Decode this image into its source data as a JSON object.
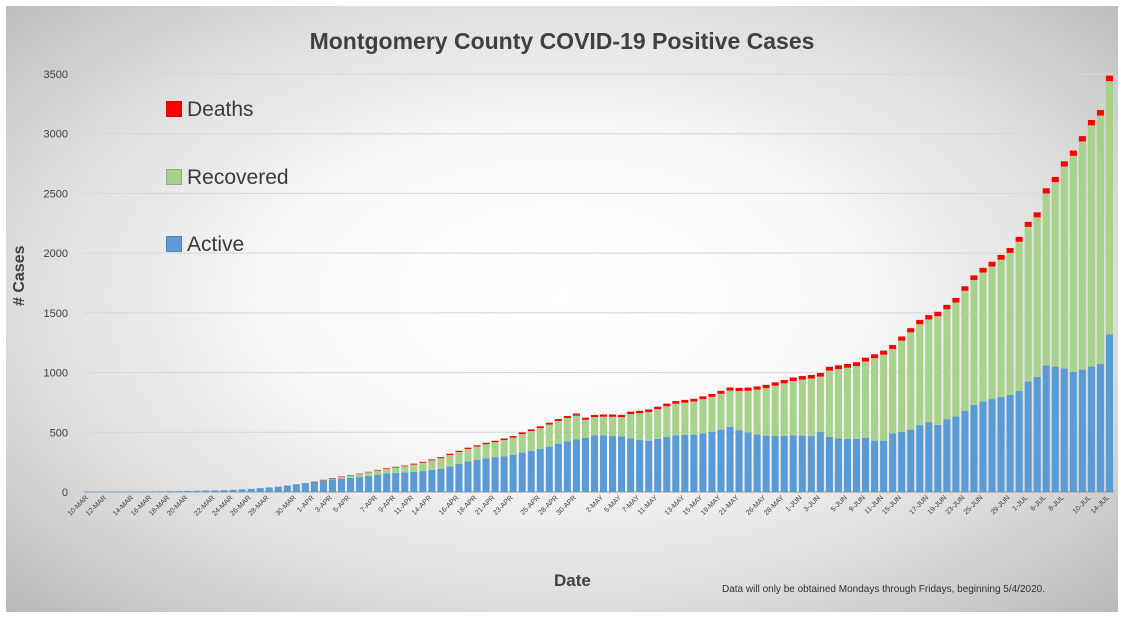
{
  "chart_data": {
    "type": "bar",
    "stacked": true,
    "title": "Montgomery County COVID-19 Positive Cases",
    "xlabel": "Date",
    "ylabel": "# Cases",
    "ylim": [
      0,
      3500
    ],
    "yticks": [
      0,
      500,
      1000,
      1500,
      2000,
      2500,
      3000,
      3500
    ],
    "grid": true,
    "legend_position": "top-left",
    "footnote": "Data will only be obtained Mondays through Fridays, beginning 5/4/2020.",
    "x_tick_labels": [
      "10-MAR",
      "12-MAR",
      "14-MAR",
      "16-MAR",
      "18-MAR",
      "20-MAR",
      "22-MAR",
      "24-MAR",
      "26-MAR",
      "28-MAR",
      "30-MAR",
      "1-APR",
      "3-APR",
      "5-APR",
      "7-APR",
      "9-APR",
      "11-APR",
      "14-APR",
      "16-APR",
      "18-APR",
      "21-APR",
      "23-APR",
      "25-APR",
      "28-APR",
      "30-APR",
      "2-MAY",
      "5-MAY",
      "7-MAY",
      "11-MAY",
      "13-MAY",
      "15-MAY",
      "19-MAY",
      "21-MAY",
      "26-MAY",
      "28-MAY",
      "1-JUN",
      "3-JUN",
      "5-JUN",
      "9-JUN",
      "11-JUN",
      "15-JUN",
      "17-JUN",
      "19-JUN",
      "23-JUN",
      "25-JUN",
      "29-JUN",
      "1-JUL",
      "6-JUL",
      "8-JUL",
      "10-JUL",
      "14-JUL"
    ],
    "series": [
      {
        "name": "Active",
        "color": "#5b9bd5",
        "values": [
          1,
          1,
          2,
          2,
          3,
          3,
          4,
          5,
          6,
          7,
          8,
          9,
          10,
          12,
          14,
          16,
          18,
          22,
          26,
          32,
          38,
          45,
          55,
          65,
          75,
          85,
          95,
          105,
          112,
          118,
          125,
          135,
          145,
          155,
          160,
          165,
          170,
          175,
          185,
          195,
          215,
          235,
          255,
          270,
          282,
          292,
          300,
          310,
          330,
          345,
          360,
          380,
          405,
          425,
          440,
          455,
          475,
          475,
          470,
          465,
          448,
          435,
          430,
          445,
          460,
          475,
          478,
          480,
          492,
          505,
          522,
          545,
          518,
          500,
          482,
          472,
          470,
          470,
          475,
          472,
          470,
          502,
          462,
          450,
          445,
          445,
          452,
          430,
          430,
          492,
          502,
          522,
          560,
          585,
          562,
          610,
          632,
          680,
          730,
          758,
          778,
          795,
          812,
          845,
          925,
          965,
          1060,
          1050,
          1035,
          1005,
          1025,
          1050,
          1072,
          1320
        ]
      },
      {
        "name": "Recovered",
        "color": "#a9d18e",
        "values": [
          0,
          0,
          0,
          0,
          0,
          0,
          0,
          0,
          0,
          0,
          0,
          0,
          0,
          0,
          0,
          0,
          0,
          0,
          0,
          0,
          0,
          0,
          0,
          0,
          0,
          0,
          5,
          10,
          15,
          20,
          25,
          30,
          35,
          40,
          45,
          50,
          60,
          70,
          80,
          88,
          95,
          100,
          105,
          110,
          118,
          125,
          135,
          145,
          155,
          165,
          175,
          185,
          190,
          195,
          200,
          150,
          152,
          156,
          160,
          162,
          205,
          225,
          240,
          248,
          258,
          264,
          270,
          278,
          285,
          292,
          300,
          305,
          328,
          348,
          375,
          398,
          420,
          440,
          455,
          470,
          480,
          465,
          555,
          580,
          595,
          610,
          640,
          690,
          720,
          705,
          765,
          815,
          845,
          860,
          910,
          920,
          955,
          1005,
          1045,
          1080,
          1110,
          1150,
          1190,
          1250,
          1295,
          1335,
          1440,
          1545,
          1690,
          1810,
          1910,
          2020,
          2080,
          2120
        ]
      },
      {
        "name": "Deaths",
        "color": "#ff0000",
        "values": [
          0,
          0,
          0,
          0,
          0,
          0,
          0,
          0,
          0,
          0,
          0,
          0,
          0,
          0,
          0,
          0,
          0,
          0,
          0,
          0,
          0,
          0,
          0,
          0,
          0,
          1,
          2,
          2,
          3,
          3,
          4,
          4,
          5,
          5,
          6,
          6,
          7,
          8,
          8,
          9,
          10,
          10,
          11,
          11,
          12,
          12,
          13,
          13,
          14,
          14,
          15,
          15,
          16,
          16,
          17,
          17,
          18,
          18,
          19,
          19,
          20,
          20,
          21,
          21,
          22,
          22,
          23,
          23,
          24,
          24,
          25,
          25,
          26,
          26,
          27,
          27,
          28,
          28,
          29,
          29,
          30,
          30,
          31,
          31,
          32,
          32,
          33,
          33,
          34,
          34,
          35,
          35,
          36,
          36,
          37,
          37,
          38,
          38,
          39,
          39,
          40,
          40,
          41,
          41,
          42,
          42,
          43,
          43,
          44,
          44,
          45,
          45,
          46,
          46
        ]
      }
    ]
  }
}
